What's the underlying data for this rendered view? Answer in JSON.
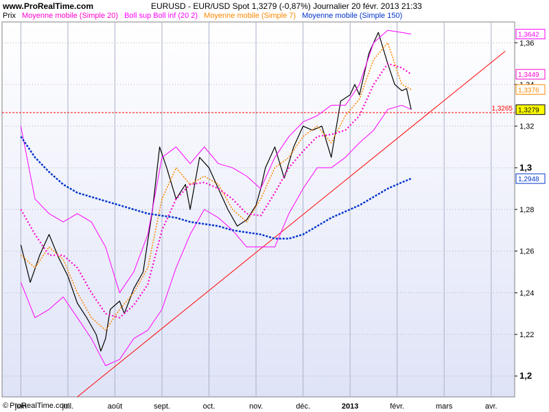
{
  "header": {
    "site": "www.ProRealTime.com",
    "title": "EURUSD - EUR/USD Spot    1,3279 (-0,87%)    Journalier  20 févr. 2013 21:33"
  },
  "legend": {
    "prix": "Prix",
    "sma20": "Moyenne mobile (Simple 20)",
    "boll": "Boll sup Boll inf (20 2)",
    "sma7": "Moyenne mobile (Simple 7)",
    "sma150": "Moyenne mobile (Simple 150)"
  },
  "footer": {
    "copyright_symbol": "©",
    "copyright_text": "ProRealTime.com"
  },
  "colors": {
    "price": "#000000",
    "sma20": "#ff00cc",
    "boll": "#ff00ff",
    "sma7": "#ff8800",
    "sma150": "#0033cc",
    "trendline": "#ff0000",
    "level_line": "#ff0000",
    "background_top": "#ffffff",
    "background_bottom": "#dfe3f7"
  },
  "chart_data": {
    "type": "line",
    "instrument": "EURUSD",
    "ylim": [
      1.19,
      1.37
    ],
    "grid": true,
    "x_ticks": [
      {
        "label": "juin",
        "month": 5.4
      },
      {
        "label": "juil.",
        "month": 6.4
      },
      {
        "label": "août",
        "month": 7.4
      },
      {
        "label": "sept.",
        "month": 8.4
      },
      {
        "label": "oct.",
        "month": 9.4
      },
      {
        "label": "nov.",
        "month": 10.4
      },
      {
        "label": "déc.",
        "month": 11.4
      },
      {
        "label": "2013",
        "month": 12.4,
        "bold": true
      },
      {
        "label": "févr.",
        "month": 13.4
      },
      {
        "label": "mars",
        "month": 14.4
      },
      {
        "label": "avr.",
        "month": 15.4
      }
    ],
    "y_ticks": [
      {
        "value": 1.2,
        "label": "1,2",
        "bold": true
      },
      {
        "value": 1.22,
        "label": "1,22"
      },
      {
        "value": 1.24,
        "label": "1,24"
      },
      {
        "value": 1.26,
        "label": "1,26"
      },
      {
        "value": 1.28,
        "label": "1,28"
      },
      {
        "value": 1.3,
        "label": "1,3",
        "bold": true
      },
      {
        "value": 1.32,
        "label": "1,32"
      },
      {
        "value": 1.34,
        "label": "1,34"
      },
      {
        "value": 1.36,
        "label": "1,36"
      }
    ],
    "last_value_boxes": [
      {
        "value": 1.3642,
        "label": "1,3642",
        "color": "#ff00ff"
      },
      {
        "value": 1.3449,
        "label": "1,3449",
        "color": "#ff00cc"
      },
      {
        "value": 1.3376,
        "label": "1,3376",
        "color": "#ff8800"
      },
      {
        "value": 1.3279,
        "label": "1,3279",
        "color": "#000000",
        "fill": "#ffff00"
      },
      {
        "value": 1.2948,
        "label": "1,2948",
        "color": "#0033cc"
      }
    ],
    "level_line": {
      "value": 1.3265,
      "label": "1,3265"
    },
    "trendline": {
      "start": [
        6.6,
        1.19
      ],
      "end": [
        15.7,
        1.356
      ]
    },
    "series": [
      {
        "name": "Prix",
        "kind": "close",
        "x": [
          5.4,
          5.6,
          5.8,
          6.0,
          6.2,
          6.4,
          6.6,
          6.8,
          7.0,
          7.1,
          7.2,
          7.3,
          7.5,
          7.6,
          7.8,
          8.0,
          8.1,
          8.2,
          8.35,
          8.5,
          8.7,
          8.9,
          9.0,
          9.2,
          9.4,
          9.6,
          9.8,
          10.0,
          10.2,
          10.4,
          10.5,
          10.6,
          10.8,
          11.0,
          11.2,
          11.4,
          11.6,
          11.8,
          12.0,
          12.2,
          12.4,
          12.5,
          12.6,
          12.8,
          13.0,
          13.2,
          13.35,
          13.5,
          13.6,
          13.7
        ],
        "values": [
          1.263,
          1.245,
          1.258,
          1.268,
          1.257,
          1.248,
          1.235,
          1.228,
          1.22,
          1.212,
          1.218,
          1.232,
          1.236,
          1.23,
          1.242,
          1.25,
          1.265,
          1.28,
          1.31,
          1.3,
          1.285,
          1.292,
          1.28,
          1.305,
          1.3,
          1.29,
          1.28,
          1.272,
          1.275,
          1.282,
          1.29,
          1.3,
          1.31,
          1.295,
          1.31,
          1.32,
          1.318,
          1.32,
          1.305,
          1.332,
          1.335,
          1.34,
          1.335,
          1.355,
          1.365,
          1.35,
          1.34,
          1.337,
          1.338,
          1.3279
        ]
      },
      {
        "name": "Moyenne mobile (Simple 7)",
        "kind": "sma7",
        "x": [
          5.4,
          5.7,
          6.0,
          6.3,
          6.6,
          6.9,
          7.2,
          7.5,
          7.8,
          8.1,
          8.4,
          8.7,
          9.0,
          9.3,
          9.6,
          9.9,
          10.2,
          10.5,
          10.8,
          11.1,
          11.4,
          11.7,
          12.0,
          12.3,
          12.6,
          12.9,
          13.2,
          13.5,
          13.7
        ],
        "values": [
          1.258,
          1.252,
          1.262,
          1.256,
          1.24,
          1.228,
          1.222,
          1.232,
          1.24,
          1.252,
          1.285,
          1.3,
          1.292,
          1.296,
          1.292,
          1.28,
          1.274,
          1.285,
          1.3,
          1.305,
          1.315,
          1.32,
          1.312,
          1.325,
          1.333,
          1.352,
          1.36,
          1.34,
          1.3376
        ]
      },
      {
        "name": "Moyenne mobile (Simple 20)",
        "kind": "sma20",
        "x": [
          5.4,
          5.7,
          6.0,
          6.3,
          6.6,
          6.9,
          7.2,
          7.5,
          7.8,
          8.1,
          8.4,
          8.7,
          9.0,
          9.3,
          9.6,
          9.9,
          10.2,
          10.5,
          10.8,
          11.1,
          11.4,
          11.7,
          12.0,
          12.3,
          12.6,
          12.9,
          13.2,
          13.5,
          13.7
        ],
        "values": [
          1.28,
          1.268,
          1.258,
          1.258,
          1.252,
          1.24,
          1.23,
          1.228,
          1.234,
          1.244,
          1.27,
          1.285,
          1.292,
          1.293,
          1.29,
          1.285,
          1.278,
          1.277,
          1.288,
          1.3,
          1.308,
          1.315,
          1.316,
          1.318,
          1.325,
          1.34,
          1.35,
          1.348,
          1.3449
        ]
      },
      {
        "name": "Boll sup",
        "kind": "boll",
        "x": [
          5.4,
          5.7,
          6.0,
          6.3,
          6.6,
          6.9,
          7.2,
          7.5,
          7.8,
          8.1,
          8.4,
          8.7,
          9.0,
          9.3,
          9.6,
          9.9,
          10.2,
          10.5,
          10.8,
          11.1,
          11.4,
          11.7,
          12.0,
          12.3,
          12.6,
          12.9,
          13.2,
          13.5,
          13.7
        ],
        "values": [
          1.32,
          1.285,
          1.278,
          1.274,
          1.278,
          1.274,
          1.262,
          1.24,
          1.25,
          1.268,
          1.305,
          1.31,
          1.302,
          1.31,
          1.302,
          1.3,
          1.296,
          1.29,
          1.305,
          1.315,
          1.322,
          1.325,
          1.33,
          1.33,
          1.34,
          1.36,
          1.366,
          1.365,
          1.3642
        ]
      },
      {
        "name": "Boll inf",
        "kind": "boll",
        "x": [
          5.4,
          5.7,
          6.0,
          6.3,
          6.6,
          6.9,
          7.2,
          7.5,
          7.8,
          8.1,
          8.4,
          8.7,
          9.0,
          9.3,
          9.6,
          9.9,
          10.2,
          10.5,
          10.8,
          11.1,
          11.4,
          11.7,
          12.0,
          12.3,
          12.6,
          12.9,
          13.2,
          13.5,
          13.7
        ],
        "values": [
          1.245,
          1.228,
          1.232,
          1.238,
          1.228,
          1.218,
          1.205,
          1.208,
          1.218,
          1.222,
          1.232,
          1.252,
          1.268,
          1.28,
          1.276,
          1.27,
          1.262,
          1.262,
          1.262,
          1.278,
          1.29,
          1.3,
          1.3,
          1.305,
          1.312,
          1.318,
          1.328,
          1.33,
          1.328
        ]
      },
      {
        "name": "Moyenne mobile (Simple 150)",
        "kind": "sma150",
        "x": [
          5.4,
          5.7,
          6.0,
          6.3,
          6.6,
          6.9,
          7.2,
          7.5,
          7.8,
          8.1,
          8.4,
          8.7,
          9.0,
          9.3,
          9.6,
          9.9,
          10.2,
          10.5,
          10.8,
          11.1,
          11.4,
          11.7,
          12.0,
          12.3,
          12.6,
          12.9,
          13.2,
          13.5,
          13.7
        ],
        "values": [
          1.315,
          1.305,
          1.298,
          1.292,
          1.288,
          1.286,
          1.284,
          1.282,
          1.28,
          1.278,
          1.277,
          1.276,
          1.274,
          1.273,
          1.272,
          1.27,
          1.269,
          1.268,
          1.266,
          1.266,
          1.268,
          1.272,
          1.276,
          1.279,
          1.282,
          1.286,
          1.29,
          1.293,
          1.2948
        ]
      }
    ]
  }
}
